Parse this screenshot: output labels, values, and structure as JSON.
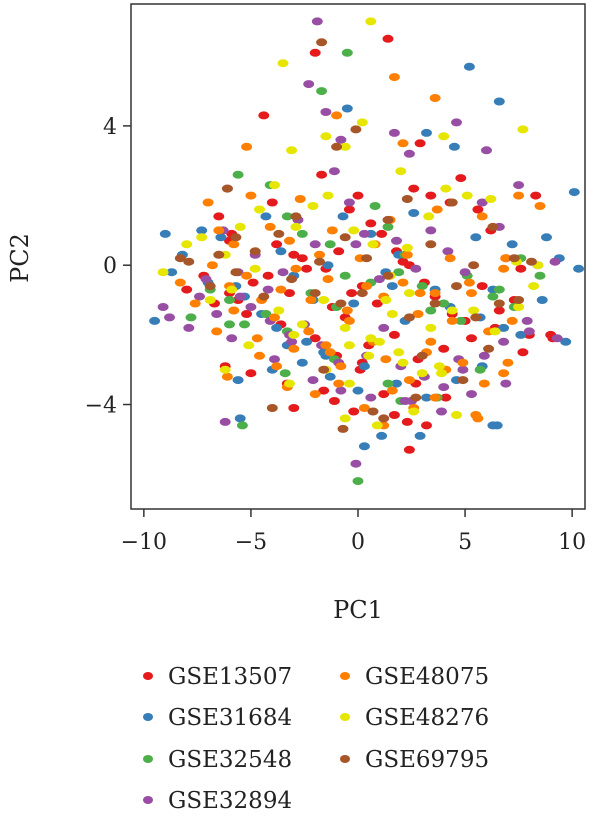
{
  "chart_data": {
    "type": "scatter",
    "xlabel": "PC1",
    "ylabel": "PC2",
    "xlim": [
      -10.6,
      10.6
    ],
    "ylim": [
      -7,
      7.5
    ],
    "xticks": [
      -10,
      -5,
      0,
      5,
      10
    ],
    "yticks": [
      -4,
      0,
      4
    ],
    "xtick_labels": [
      "−10",
      "−5",
      "0",
      "5",
      "10"
    ],
    "ytick_labels": [
      "−4",
      "0",
      "4"
    ],
    "grid": false,
    "legend_position": "bottom",
    "series": [
      {
        "name": "GSE13507",
        "color": "#e41a1c",
        "x": [
          -2.0,
          -4.4,
          -1.7,
          1.4,
          2.9,
          -6.2,
          -4.0,
          -6.5,
          -5.9,
          -3.8,
          -3.0,
          -2.6,
          -1.5,
          -0.9,
          -0.4,
          0.0,
          0.6,
          1.1,
          1.8,
          2.1,
          2.6,
          3.4,
          4.3,
          4.8,
          5.6,
          6.2,
          6.9,
          7.6,
          8.3,
          -8.0,
          -7.2,
          -6.0,
          -5.6,
          -4.9,
          -4.2,
          -3.2,
          -2.4,
          -1.2,
          -0.6,
          0.2,
          0.9,
          1.5,
          2.4,
          3.1,
          3.6,
          4.4,
          5.0,
          5.8,
          6.6,
          7.3,
          8.0,
          9.1,
          -6.7,
          -5.2,
          -3.6,
          -2.0,
          -1.0,
          0.5,
          1.7,
          2.8,
          4.0,
          5.3,
          6.4,
          7.7,
          9.0,
          -5.0,
          -3.3,
          -1.6,
          0.1,
          1.2,
          2.7,
          4.1,
          -3.0,
          -0.2,
          2.3,
          -6.0,
          -1.1,
          0.2,
          1.7,
          3.2,
          -0.3,
          2.4
        ],
        "y": [
          6.1,
          4.3,
          2.6,
          6.5,
          3.5,
          -2.9,
          1.8,
          1.4,
          0.9,
          0.6,
          0.3,
          0.2,
          -0.1,
          0.4,
          1.6,
          2.0,
          1.2,
          0.9,
          0.4,
          0.1,
          2.2,
          2.0,
          1.8,
          2.5,
          1.6,
          1.0,
          0.2,
          -0.1,
          2.0,
          -0.7,
          -0.3,
          -0.8,
          -1.0,
          -0.5,
          -0.3,
          -0.8,
          -0.1,
          -1.2,
          -1.5,
          -0.6,
          -1.1,
          -0.3,
          0.0,
          -0.5,
          -0.9,
          -1.4,
          -1.6,
          -0.6,
          -1.3,
          -1.0,
          -2.0,
          -2.1,
          -1.1,
          -1.4,
          -1.7,
          -2.1,
          -2.6,
          -2.3,
          -2.0,
          -2.7,
          -2.4,
          -2.1,
          -1.8,
          -2.5,
          -2.0,
          -3.1,
          -3.4,
          -3.6,
          -3.0,
          -3.7,
          -3.4,
          -3.8,
          -4.1,
          -4.2,
          -4.5,
          0.7,
          -3.9,
          -2.8,
          -4.3,
          -4.6,
          -0.8,
          -5.3
        ]
      },
      {
        "name": "GSE31684",
        "color": "#377eb8",
        "x": [
          5.2,
          6.6,
          3.2,
          -0.5,
          -9.0,
          -9.5,
          -8.7,
          -7.3,
          -6.4,
          -5.7,
          -4.3,
          -3.6,
          -3.0,
          -2.1,
          -1.4,
          -0.7,
          0.6,
          1.3,
          1.9,
          2.6,
          3.6,
          4.5,
          5.5,
          6.3,
          7.2,
          8.8,
          10.1,
          10.3,
          9.4,
          -8.2,
          -7.0,
          -5.3,
          -4.5,
          -3.8,
          -2.4,
          -1.5,
          0.3,
          1.6,
          2.2,
          4.3,
          5.7,
          6.8,
          7.6,
          8.6,
          9.7,
          -5.6,
          -4.0,
          -2.6,
          -1.3,
          0.0,
          1.8,
          3.2,
          4.6,
          5.8,
          6.5,
          -5.5,
          -3.3,
          -1.6,
          0.3,
          1.1,
          2.9,
          6.3,
          -0.2
        ],
        "y": [
          5.7,
          4.7,
          3.8,
          4.5,
          0.9,
          -1.6,
          -0.2,
          1.0,
          0.8,
          -0.6,
          1.4,
          0.4,
          -0.3,
          -1.0,
          0.0,
          1.4,
          0.9,
          -0.2,
          0.3,
          1.5,
          -0.7,
          3.4,
          0.8,
          -0.7,
          0.6,
          0.8,
          2.1,
          -0.1,
          0.2,
          0.3,
          -0.5,
          -0.9,
          -1.4,
          -1.8,
          -2.2,
          -2.6,
          -2.9,
          -0.6,
          -1.6,
          -1.2,
          -1.5,
          -1.8,
          -2.0,
          -1.0,
          -2.2,
          -3.3,
          -3.0,
          -2.8,
          -3.2,
          -3.6,
          -3.4,
          -3.8,
          -3.3,
          -2.9,
          -4.6,
          -4.4,
          -2.3,
          -2.5,
          -5.2,
          -4.9,
          -4.9,
          -4.6,
          -1.1
        ]
      },
      {
        "name": "GSE32548",
        "color": "#4daf4a",
        "x": [
          -0.5,
          -1.7,
          -6.0,
          -5.4,
          -4.1,
          -3.3,
          -2.6,
          -1.3,
          -0.6,
          0.8,
          1.4,
          2.2,
          3.0,
          4.0,
          5.1,
          6.6,
          7.6,
          -7.8,
          -6.9,
          -6.0,
          -5.3,
          -4.3,
          -3.3,
          -2.2,
          -1.0,
          0.6,
          1.9,
          3.4,
          4.8,
          6.3,
          7.3,
          8.5,
          -5.6,
          -3.4,
          -1.1,
          1.4,
          3.7,
          5.7,
          0.0,
          2.0
        ],
        "y": [
          6.1,
          5.0,
          -1.7,
          -4.6,
          2.3,
          1.4,
          0.9,
          0.6,
          -0.3,
          1.7,
          1.1,
          0.3,
          -0.6,
          -1.1,
          -0.3,
          -0.7,
          0.2,
          -1.5,
          -0.7,
          -1.0,
          -1.7,
          -1.4,
          -1.9,
          -0.8,
          -1.2,
          -0.5,
          -0.2,
          -1.3,
          -1.6,
          -0.9,
          -1.2,
          -0.3,
          2.6,
          -3.1,
          -2.7,
          -3.4,
          -3.8,
          -3.0,
          -6.2,
          -3.9
        ]
      },
      {
        "name": "GSE32894",
        "color": "#984ea3",
        "x": [
          -1.9,
          -2.3,
          -1.5,
          -0.8,
          1.7,
          2.4,
          4.6,
          6.0,
          -9.1,
          -7.9,
          -7.1,
          -6.3,
          -5.6,
          -4.8,
          -4.2,
          -3.5,
          -2.8,
          -2.0,
          -1.1,
          -0.4,
          0.3,
          1.0,
          1.8,
          2.7,
          3.4,
          4.2,
          5.0,
          5.8,
          6.6,
          7.5,
          8.4,
          9.2,
          -8.8,
          -7.4,
          -6.6,
          -5.9,
          -5.0,
          -4.1,
          -3.2,
          -2.5,
          -1.7,
          -0.9,
          0.4,
          1.2,
          2.0,
          3.1,
          4.0,
          4.9,
          5.9,
          6.8,
          7.9,
          9.3,
          -6.1,
          -3.9,
          -2.1,
          -0.8,
          0.6,
          2.2,
          3.9,
          5.3,
          6.9,
          8.0,
          -5.5,
          -3.1,
          -0.1,
          2.5,
          4.7,
          -6.2,
          -0.1
        ],
        "y": [
          7.0,
          5.2,
          4.4,
          3.6,
          3.8,
          3.2,
          4.1,
          3.3,
          -1.2,
          -1.8,
          -0.4,
          1.0,
          -0.2,
          0.3,
          -0.7,
          -0.2,
          1.3,
          0.6,
          2.7,
          1.8,
          0.9,
          -0.4,
          0.7,
          -0.1,
          1.0,
          0.4,
          -0.2,
          1.8,
          1.1,
          2.3,
          0.0,
          0.1,
          -1.5,
          -0.9,
          -1.4,
          -2.1,
          -1.2,
          -1.6,
          -2.0,
          -1.7,
          -2.3,
          -2.8,
          -2.6,
          -1.8,
          -2.9,
          -3.2,
          -3.5,
          -3.0,
          -2.6,
          -2.2,
          -1.6,
          -2.1,
          2.2,
          -2.7,
          -3.3,
          -3.6,
          -3.8,
          -3.9,
          -4.2,
          -3.7,
          -3.4,
          -1.9,
          -0.9,
          -2.2,
          -5.7,
          -3.9,
          -2.7,
          -4.5,
          0.6
        ]
      },
      {
        "name": "GSE48075",
        "color": "#ff7f00",
        "x": [
          1.7,
          3.6,
          2.1,
          -1.0,
          -5.2,
          -7.0,
          -6.5,
          -5.8,
          -5.0,
          -4.1,
          -3.2,
          -2.7,
          -1.8,
          -1.2,
          0.1,
          0.8,
          1.5,
          2.3,
          2.9,
          3.7,
          4.3,
          5.2,
          5.8,
          6.9,
          7.5,
          8.5,
          -6.8,
          -6.0,
          -5.2,
          -4.5,
          -3.6,
          -2.9,
          -2.2,
          -1.4,
          -0.5,
          0.4,
          1.2,
          2.1,
          2.8,
          3.6,
          4.4,
          5.3,
          6.1,
          6.8,
          7.2,
          -8.3,
          -7.6,
          -6.6,
          -5.8,
          -4.7,
          -3.9,
          -3.0,
          -2.3,
          -1.3,
          -0.4,
          0.7,
          1.3,
          2.4,
          3.2,
          4.1,
          4.9,
          5.9,
          7.0,
          -6.1,
          -4.6,
          -3.3,
          -2.0,
          -0.9,
          0.3,
          1.6,
          2.6,
          3.6,
          5.6,
          -1.5,
          -3.8,
          -0.8,
          1.2,
          3.4,
          5.5,
          6.8
        ],
        "y": [
          5.4,
          4.8,
          3.5,
          4.3,
          3.4,
          1.8,
          1.0,
          0.6,
          2.0,
          1.1,
          0.7,
          1.9,
          0.3,
          1.0,
          0.2,
          0.6,
          1.3,
          0.3,
          -0.8,
          1.6,
          0.2,
          -0.5,
          1.4,
          0.2,
          2.0,
          1.7,
          0.0,
          -0.6,
          -0.3,
          -1.0,
          -0.7,
          -0.1,
          -1.0,
          -0.4,
          -1.3,
          -0.6,
          -0.9,
          -0.5,
          -1.4,
          -0.8,
          -1.6,
          -0.8,
          -1.9,
          -0.1,
          -1.6,
          -0.5,
          -1.1,
          -1.9,
          -1.3,
          -2.1,
          -1.5,
          -2.4,
          -1.9,
          -2.5,
          -1.6,
          -2.2,
          -2.7,
          -3.3,
          -2.5,
          -3.0,
          -2.8,
          -3.4,
          -2.8,
          -3.2,
          -2.6,
          -3.5,
          -3.7,
          -3.4,
          -4.1,
          -3.6,
          -4.1,
          -3.8,
          -4.4,
          -2.3,
          -2.9,
          -2.9,
          -4.6,
          -2.2,
          -4.3,
          -3.1
        ]
      },
      {
        "name": "GSE48276",
        "color": "#e6e600",
        "x": [
          0.6,
          -3.5,
          -3.1,
          -1.5,
          -0.6,
          0.2,
          2.0,
          4.0,
          7.7,
          -8.0,
          -9.1,
          -7.3,
          -6.2,
          -5.5,
          -4.6,
          -3.9,
          -2.9,
          -2.1,
          -1.4,
          -0.2,
          0.7,
          1.5,
          2.3,
          3.3,
          4.1,
          5.1,
          6.2,
          7.4,
          8.4,
          -6.9,
          -5.9,
          -4.8,
          -3.7,
          -2.6,
          -1.6,
          -0.6,
          0.6,
          1.6,
          2.4,
          3.4,
          4.4,
          5.4,
          6.4,
          7.5,
          8.2,
          -5.1,
          -3.0,
          -0.4,
          1.9,
          3.9,
          -0.4,
          1.0,
          2.1,
          3.0,
          -6.2,
          -3.2,
          -0.6,
          0.9,
          2.6,
          4.6,
          -1.5,
          0.5,
          1.3,
          3.8
        ],
        "y": [
          7.0,
          5.8,
          3.3,
          3.7,
          3.4,
          4.1,
          2.7,
          3.7,
          3.9,
          0.6,
          -0.2,
          0.8,
          0.3,
          1.1,
          1.6,
          2.3,
          1.1,
          1.7,
          2.0,
          1.0,
          0.6,
          -0.3,
          0.5,
          1.4,
          2.2,
          2.0,
          1.9,
          0.1,
          0.0,
          -1.0,
          -0.7,
          -0.1,
          -1.3,
          -1.7,
          -1.0,
          -1.8,
          -2.1,
          -1.4,
          -0.8,
          -1.8,
          -1.3,
          -1.3,
          -1.9,
          -1.2,
          -0.6,
          -2.3,
          -2.0,
          -2.3,
          -2.5,
          -3.1,
          -3.4,
          -2.2,
          -2.8,
          -3.1,
          -3.0,
          -3.4,
          -4.4,
          -4.6,
          -4.2,
          -4.3,
          -3.0,
          -2.6,
          -1.0,
          -2.9
        ]
      },
      {
        "name": "GSE69795",
        "color": "#a65628",
        "x": [
          -1.7,
          -1.0,
          -0.1,
          -6.1,
          -5.7,
          -7.9,
          -6.5,
          -4.8,
          -3.7,
          -2.9,
          -1.8,
          -0.6,
          0.4,
          1.4,
          2.3,
          3.4,
          4.4,
          5.4,
          6.3,
          7.3,
          8.1,
          -8.3,
          -6.9,
          -5.7,
          -4.4,
          -3.1,
          -2.0,
          -0.8,
          0.2,
          1.4,
          2.4,
          3.6,
          4.6,
          5.5,
          6.6,
          7.5,
          -4.0,
          -1.6,
          0.7,
          2.7,
          4.9,
          6.1,
          -0.7,
          1.2,
          3.0
        ],
        "y": [
          6.4,
          3.4,
          3.9,
          2.2,
          0.8,
          0.1,
          0.3,
          0.4,
          0.9,
          1.4,
          0.1,
          0.8,
          0.2,
          1.3,
          1.9,
          0.6,
          1.8,
          0.0,
          1.1,
          0.2,
          0.1,
          0.2,
          -0.6,
          -0.2,
          -0.9,
          -0.4,
          -0.8,
          -1.1,
          -0.8,
          -0.3,
          -1.5,
          -1.1,
          -0.6,
          -1.5,
          -1.1,
          -1.0,
          -4.1,
          -3.0,
          -4.2,
          -3.8,
          -3.3,
          -2.4,
          -4.7,
          -4.4,
          -2.6
        ]
      }
    ]
  }
}
